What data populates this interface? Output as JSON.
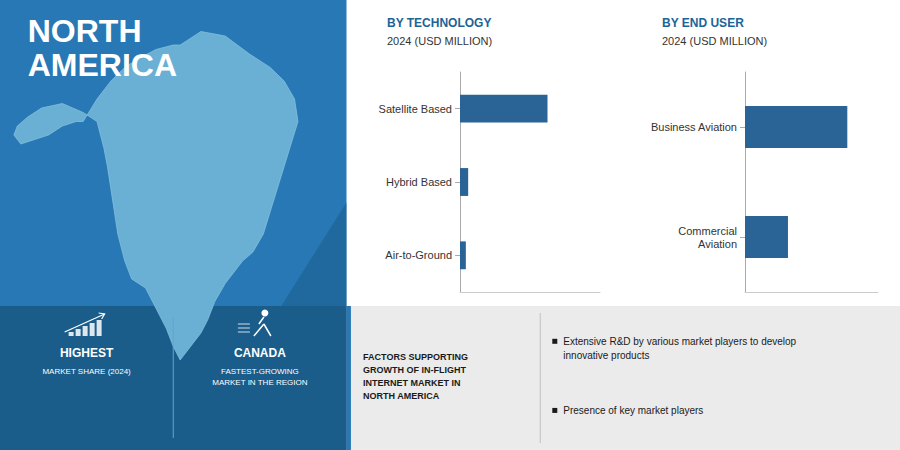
{
  "title": "NORTH\nAMERICA",
  "annotations": [
    "HIGHEST",
    "MARKET SHARE (2024)",
    "CANADA",
    "FASTEST-GROWING\nMARKET IN THE REGION",
    "FACTORS SUPPORTING\nGROWTH OF IN-FLIGHT\nINTERNET MARKET IN\nNORTH AMERICA",
    "Extensive R&D by various market players to develop\ninnovative products",
    "Presence of key market players"
  ],
  "chart_data": [
    {
      "type": "bar",
      "orientation": "horizontal",
      "title": "BY TECHNOLOGY",
      "subtitle": "2024 (USD MILLION)",
      "categories": [
        "Satellite Based",
        "Hybrid Based",
        "Air-to-Ground"
      ],
      "values": [
        75,
        7,
        5
      ],
      "color": "#2a6496",
      "xlim": [
        0,
        120
      ],
      "grid": false,
      "tick_labels": "y"
    },
    {
      "type": "bar",
      "orientation": "horizontal",
      "title": "BY END USER",
      "subtitle": "2024 (USD MILLION)",
      "categories": [
        "Business Aviation",
        "Commercial\nAviation"
      ],
      "values": [
        100,
        42
      ],
      "color": "#2a6496",
      "xlim": [
        0,
        130
      ],
      "grid": false,
      "tick_labels": "y"
    }
  ]
}
